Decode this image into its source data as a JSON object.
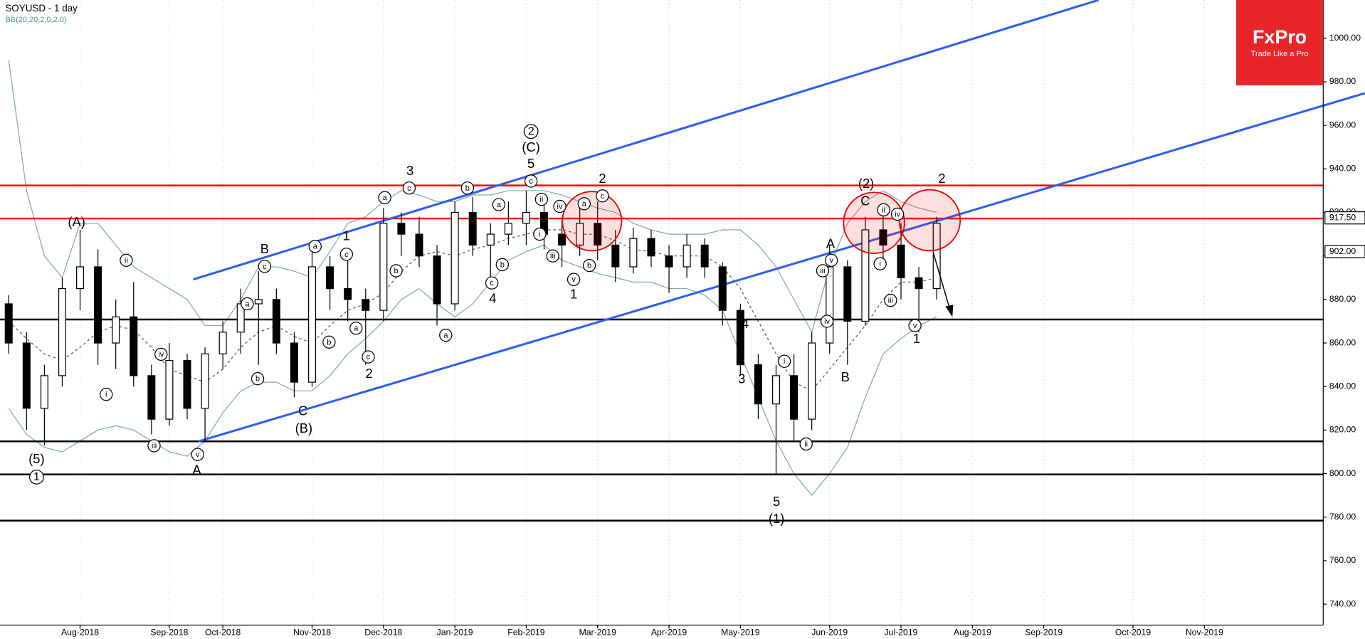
{
  "chart_data": {
    "type": "candlestick",
    "title": "SOYUSD - 1 day",
    "subtitle": "BB(20,20,2,0,2.0)",
    "logo": {
      "name": "FxPro",
      "tagline": "Trade Like a Pro",
      "color": "#e8262a"
    },
    "categories": [
      null,
      null,
      null,
      null,
      "Aug-2018",
      null,
      null,
      null,
      null,
      "Sep-2018",
      null,
      null,
      "Oct-2018",
      null,
      null,
      null,
      null,
      "Nov-2018",
      null,
      null,
      null,
      "Dec-2018",
      null,
      null,
      null,
      "Jan-2019",
      null,
      null,
      null,
      "Feb-2019",
      null,
      null,
      null,
      "Mar-2019",
      null,
      null,
      null,
      "Apr-2019",
      null,
      null,
      null,
      "May-2019",
      null,
      null,
      null,
      null,
      "Jun-2019",
      null,
      null,
      null,
      "Jul-2019",
      null,
      null,
      null,
      "Aug-2019",
      null,
      null,
      null,
      "Sep-2019",
      null,
      null,
      null,
      null,
      "Oct-2019",
      null,
      null,
      null,
      "Nov-2019",
      null,
      null,
      null,
      null,
      null,
      null
    ],
    "open": [
      878,
      860,
      830,
      845,
      885,
      895,
      860,
      872,
      845,
      825,
      852,
      830,
      855,
      865,
      878,
      880,
      860,
      842,
      895,
      885,
      880,
      875,
      915,
      910,
      900,
      878,
      920,
      905,
      910,
      915,
      920,
      910,
      905,
      915,
      905,
      895,
      908,
      900,
      895,
      905,
      895,
      875,
      850,
      832,
      845,
      825,
      860,
      895,
      870,
      912,
      905,
      890,
      885,
      null,
      null,
      null,
      null,
      null,
      null,
      null,
      null,
      null,
      null,
      null,
      null,
      null,
      null,
      null,
      null,
      null,
      null,
      null,
      null,
      null
    ],
    "high": [
      882,
      865,
      850,
      890,
      912,
      903,
      880,
      888,
      850,
      860,
      855,
      858,
      870,
      885,
      893,
      885,
      865,
      907,
      900,
      902,
      885,
      922,
      920,
      918,
      905,
      925,
      927,
      915,
      925,
      930,
      928,
      918,
      925,
      925,
      912,
      913,
      912,
      905,
      910,
      908,
      897,
      878,
      855,
      850,
      855,
      865,
      905,
      898,
      918,
      920,
      915,
      895,
      918,
      null,
      null,
      null,
      null,
      null,
      null,
      null,
      null,
      null,
      null,
      null,
      null,
      null,
      null,
      null,
      null,
      null,
      null,
      null,
      null,
      null
    ],
    "low": [
      855,
      820,
      813,
      840,
      875,
      850,
      848,
      840,
      818,
      822,
      825,
      815,
      848,
      855,
      850,
      855,
      835,
      840,
      875,
      870,
      850,
      870,
      900,
      895,
      868,
      875,
      900,
      890,
      905,
      905,
      903,
      895,
      900,
      898,
      888,
      892,
      895,
      883,
      890,
      890,
      868,
      845,
      825,
      800,
      815,
      820,
      855,
      850,
      868,
      895,
      880,
      865,
      880,
      null,
      null,
      null,
      null,
      null,
      null,
      null,
      null,
      null,
      null,
      null,
      null,
      null,
      null,
      null,
      null,
      null,
      null,
      null,
      null,
      null
    ],
    "close": [
      860,
      830,
      845,
      885,
      895,
      860,
      872,
      845,
      825,
      852,
      830,
      855,
      865,
      878,
      880,
      860,
      842,
      895,
      885,
      880,
      875,
      915,
      910,
      900,
      878,
      920,
      905,
      910,
      915,
      920,
      910,
      905,
      915,
      905,
      895,
      908,
      900,
      895,
      905,
      895,
      875,
      850,
      832,
      845,
      825,
      860,
      895,
      870,
      912,
      905,
      890,
      885,
      915,
      null,
      null,
      null,
      null,
      null,
      null,
      null,
      null,
      null,
      null,
      null,
      null,
      null,
      null,
      null,
      null,
      null,
      null,
      null,
      null,
      null
    ],
    "colors": {
      "up": "#ffffff",
      "down": "#000000",
      "outline": "#000000"
    },
    "bands": [
      {
        "name": "upper",
        "color": "#7fa9a9",
        "values": [
          990,
          930,
          900,
          890,
          915,
          915,
          905,
          895,
          890,
          885,
          880,
          868,
          868,
          880,
          895,
          895,
          893,
          890,
          902,
          915,
          918,
          925,
          930,
          928,
          925,
          925,
          928,
          928,
          930,
          930,
          930,
          928,
          925,
          922,
          920,
          915,
          912,
          910,
          910,
          910,
          912,
          912,
          905,
          895,
          880,
          865,
          895,
          915,
          925,
          930,
          925,
          922,
          920,
          null,
          null,
          null,
          null,
          null,
          null,
          null,
          null,
          null,
          null,
          null,
          null,
          null,
          null,
          null,
          null,
          null,
          null,
          null,
          null,
          null
        ]
      },
      {
        "name": "middle",
        "color": "#555555",
        "dash": true,
        "values": [
          870,
          862,
          855,
          852,
          858,
          865,
          868,
          866,
          858,
          848,
          845,
          842,
          848,
          858,
          865,
          868,
          863,
          860,
          868,
          875,
          878,
          883,
          893,
          900,
          902,
          900,
          903,
          905,
          908,
          910,
          912,
          912,
          910,
          910,
          907,
          903,
          902,
          900,
          900,
          900,
          895,
          885,
          870,
          855,
          842,
          838,
          848,
          858,
          868,
          880,
          888,
          888,
          890,
          null,
          null,
          null,
          null,
          null,
          null,
          null,
          null,
          null,
          null,
          null,
          null,
          null,
          null,
          null,
          null,
          null,
          null,
          null,
          null,
          null
        ]
      },
      {
        "name": "lower",
        "color": "#7fa9a9",
        "values": [
          830,
          818,
          812,
          810,
          815,
          820,
          822,
          820,
          815,
          810,
          808,
          815,
          828,
          838,
          842,
          842,
          838,
          838,
          845,
          855,
          862,
          870,
          880,
          885,
          878,
          872,
          878,
          888,
          898,
          902,
          905,
          898,
          895,
          892,
          890,
          888,
          888,
          885,
          885,
          882,
          875,
          855,
          835,
          815,
          800,
          790,
          800,
          812,
          835,
          855,
          862,
          868,
          872,
          null,
          null,
          null,
          null,
          null,
          null,
          null,
          null,
          null,
          null,
          null,
          null,
          null,
          null,
          null,
          null,
          null,
          null,
          null,
          null,
          null
        ]
      }
    ],
    "levels": [
      {
        "value": 932.4,
        "color": "#ff0000"
      },
      {
        "value": 917.2,
        "color": "#ff0000"
      },
      {
        "value": 870.8,
        "color": "#000000"
      },
      {
        "value": 814.8,
        "color": "#000000"
      },
      {
        "value": 799.6,
        "color": "#000000"
      },
      {
        "value": 778.4,
        "color": "#000000"
      }
    ],
    "price_labels": [
      {
        "value": 917.5,
        "label": "917.50"
      },
      {
        "value": 902,
        "label": "902.00"
      }
    ],
    "ylim": [
      730.4,
      1017.6
    ],
    "yticks": [
      {
        "value": 740,
        "label": "740.00"
      },
      {
        "value": 760,
        "label": "760.00"
      },
      {
        "value": 780,
        "label": "780.00"
      },
      {
        "value": 800,
        "label": "800.00"
      },
      {
        "value": 820,
        "label": "820.00"
      },
      {
        "value": 840,
        "label": "840.00"
      },
      {
        "value": 860,
        "label": "860.00"
      },
      {
        "value": 880,
        "label": "880.00"
      },
      {
        "value": 900,
        "label": "900.00"
      },
      {
        "value": 920,
        "label": "920.00"
      },
      {
        "value": 940,
        "label": "940.00"
      },
      {
        "value": 960,
        "label": "960.00"
      },
      {
        "value": 980,
        "label": "980.00"
      },
      {
        "value": 1000,
        "label": "1000.00"
      }
    ],
    "grid": true,
    "annotations": [
      {
        "text": "(A)"
      },
      {
        "text": "(5)"
      },
      {
        "text": "B"
      },
      {
        "text": "C"
      },
      {
        "text": "(B)"
      },
      {
        "text": "1"
      },
      {
        "text": "2"
      },
      {
        "text": "3"
      },
      {
        "text": "4"
      },
      {
        "text": "5"
      },
      {
        "text": "(C)"
      },
      {
        "text": "1"
      },
      {
        "text": "2"
      },
      {
        "text": "4"
      },
      {
        "text": "3"
      },
      {
        "text": "5"
      },
      {
        "text": "(1)"
      },
      {
        "text": "A"
      },
      {
        "text": "B"
      },
      {
        "text": "(2)"
      },
      {
        "text": "C"
      },
      {
        "text": "2"
      },
      {
        "text": "1"
      },
      {
        "text": "A"
      },
      {
        "text": "1",
        "circled": true
      },
      {
        "text": "2",
        "circled": true
      },
      {
        "text": "i",
        "circled": true
      },
      {
        "text": "ii",
        "circled": true
      },
      {
        "text": "iii",
        "circled": true
      },
      {
        "text": "iv",
        "circled": true
      },
      {
        "text": "v",
        "circled": true
      },
      {
        "text": "a",
        "circled": true
      },
      {
        "text": "b",
        "circled": true
      },
      {
        "text": "c",
        "circled": true
      },
      {
        "text": "a",
        "circled": true
      },
      {
        "text": "b",
        "circled": true
      },
      {
        "text": "c",
        "circled": true
      },
      {
        "text": "a",
        "circled": true
      },
      {
        "text": "c",
        "circled": true
      },
      {
        "text": "a",
        "circled": true
      },
      {
        "text": "b",
        "circled": true
      },
      {
        "text": "c",
        "circled": true
      },
      {
        "text": "a",
        "circled": true
      },
      {
        "text": "b",
        "circled": true
      },
      {
        "text": "a",
        "circled": true
      },
      {
        "text": "c",
        "circled": true
      },
      {
        "text": "b",
        "circled": true
      },
      {
        "text": "c",
        "circled": true
      },
      {
        "text": "ii",
        "circled": true
      },
      {
        "text": "iv",
        "circled": true
      },
      {
        "text": "i",
        "circled": true
      },
      {
        "text": "iii",
        "circled": true
      },
      {
        "text": "a",
        "circled": true
      },
      {
        "text": "c",
        "circled": true
      },
      {
        "text": "v",
        "circled": true
      },
      {
        "text": "b",
        "circled": true
      },
      {
        "text": "i",
        "circled": true
      },
      {
        "text": "ii",
        "circled": true
      },
      {
        "text": "iii",
        "circled": true
      },
      {
        "text": "iv",
        "circled": true
      },
      {
        "text": "v",
        "circled": true
      },
      {
        "text": "ii",
        "circled": true
      },
      {
        "text": "iv",
        "circled": true
      },
      {
        "text": "i",
        "circled": true
      },
      {
        "text": "iii",
        "circled": true
      },
      {
        "text": "v",
        "circled": true
      }
    ]
  }
}
